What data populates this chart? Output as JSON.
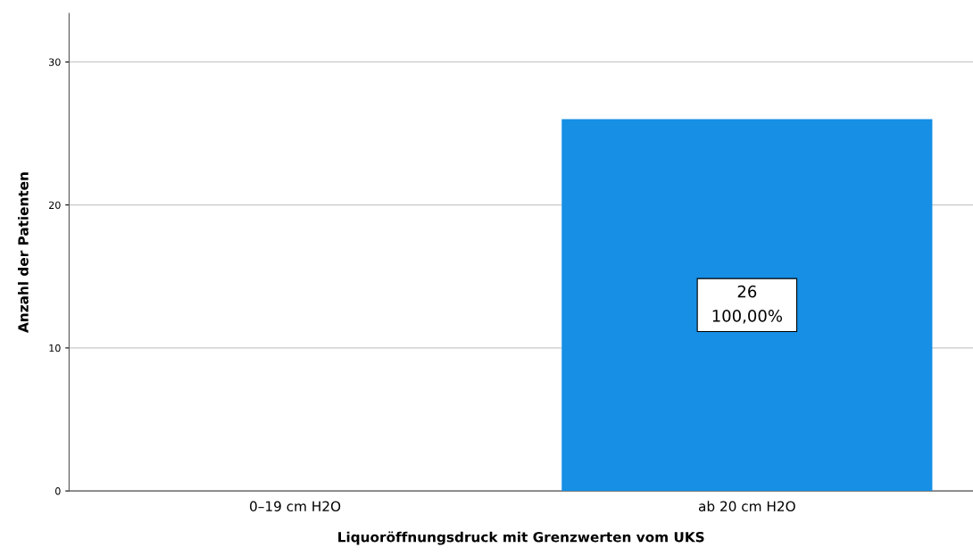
{
  "chart_data": {
    "type": "bar",
    "xlabel": "Liquoröffnungsdruck mit Grenzwerten vom UKS",
    "ylabel": "Anzahl der Patienten",
    "categories": [
      "0–19 cm H2O",
      "ab 20 cm H2O"
    ],
    "values": [
      0,
      26
    ],
    "value_labels": [
      null,
      "26"
    ],
    "annotations": [
      "100,00%"
    ],
    "color": "#168fe5",
    "ylim": [
      0,
      33.4
    ],
    "yticks": [
      0,
      10,
      20,
      30
    ],
    "grid": "y",
    "legend": false
  }
}
